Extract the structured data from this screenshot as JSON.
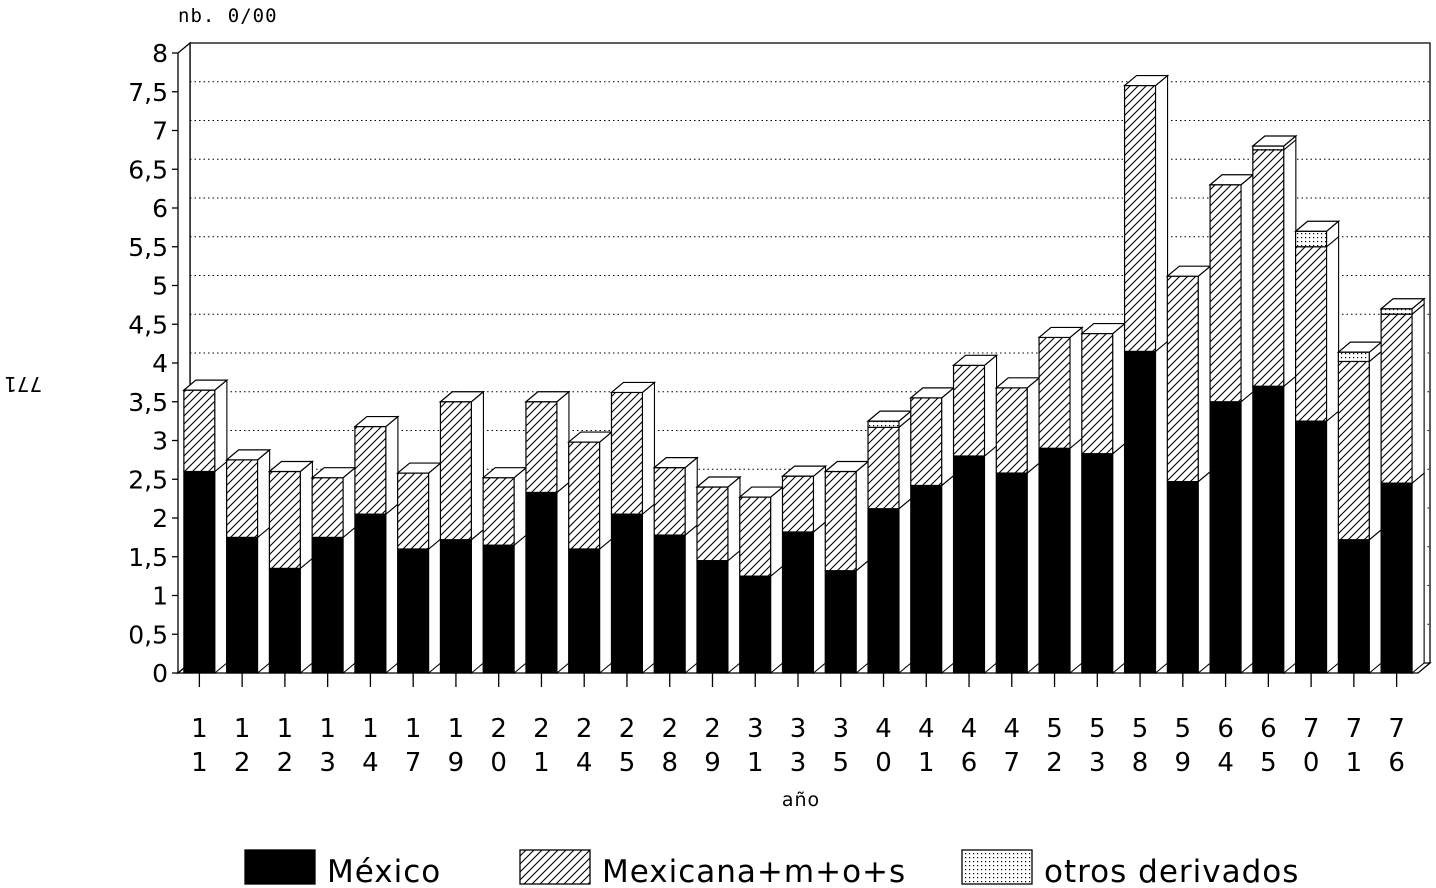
{
  "side_mark": "771",
  "chart_data": {
    "type": "bar",
    "stacked": true,
    "style": "3d",
    "title": "",
    "unit_label": "nb. 0/00",
    "xlabel": "año",
    "ylabel": "",
    "ylim": [
      0,
      8
    ],
    "y_ticks": [
      "0",
      "0.5",
      "1",
      "1.5",
      "2",
      "2.5",
      "3",
      "3.5",
      "4",
      "4.5",
      "5",
      "5.5",
      "6",
      "6.5",
      "7",
      "7.5",
      "8"
    ],
    "grid": "horizontal dotted",
    "legend_position": "bottom",
    "categories": [
      "11",
      "12",
      "12",
      "13",
      "14",
      "17",
      "19",
      "20",
      "21",
      "24",
      "25",
      "28",
      "29",
      "31",
      "33",
      "35",
      "40",
      "41",
      "46",
      "47",
      "52",
      "53",
      "58",
      "59",
      "64",
      "65",
      "70",
      "71",
      "76"
    ],
    "series": [
      {
        "name": "México",
        "pattern": "solid",
        "values": [
          2.6,
          1.75,
          1.35,
          1.75,
          2.05,
          1.6,
          1.72,
          1.65,
          2.33,
          1.6,
          2.05,
          1.78,
          1.45,
          1.25,
          1.82,
          1.32,
          2.12,
          2.42,
          2.8,
          2.58,
          2.9,
          2.83,
          4.15,
          2.47,
          3.5,
          3.7,
          3.25,
          1.72,
          2.45
        ]
      },
      {
        "name": "Mexicana+m+o+s",
        "pattern": "hatch",
        "values": [
          1.05,
          1.0,
          1.25,
          0.77,
          1.13,
          0.98,
          1.78,
          0.87,
          1.17,
          1.38,
          1.57,
          0.87,
          0.95,
          1.02,
          0.72,
          1.28,
          1.05,
          1.13,
          1.17,
          1.1,
          1.43,
          1.55,
          3.43,
          2.65,
          2.8,
          3.05,
          2.25,
          2.3,
          2.18
        ]
      },
      {
        "name": "otros derivados",
        "pattern": "dots",
        "values": [
          0,
          0,
          0,
          0,
          0,
          0,
          0,
          0,
          0,
          0,
          0,
          0,
          0,
          0,
          0,
          0,
          0.08,
          0,
          0,
          0,
          0,
          0,
          0,
          0,
          0,
          0.05,
          0.2,
          0.12,
          0.07
        ]
      }
    ]
  }
}
